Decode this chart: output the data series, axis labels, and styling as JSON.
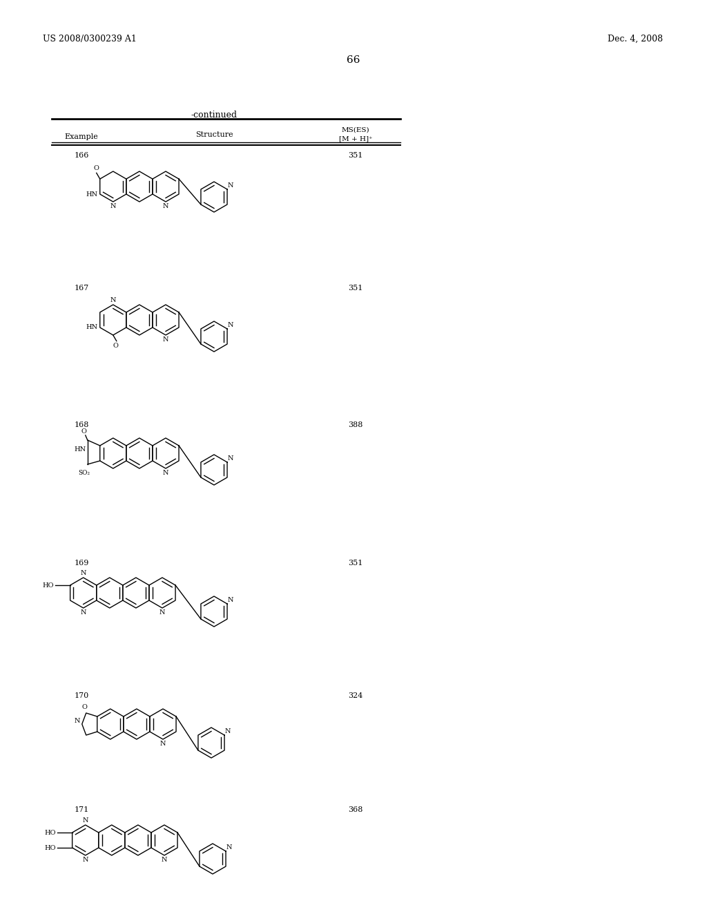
{
  "patent_number": "US 2008/0300239 A1",
  "patent_date": "Dec. 4, 2008",
  "page_number": "66",
  "table_continued": "-continued",
  "col_example": "Example",
  "col_structure": "Structure",
  "col_ms1": "MS(ES)",
  "col_ms2": "[M + H]⁺",
  "examples": [
    {
      "num": "166",
      "ms": "351"
    },
    {
      "num": "167",
      "ms": "351"
    },
    {
      "num": "168",
      "ms": "388"
    },
    {
      "num": "169",
      "ms": "351"
    },
    {
      "num": "170",
      "ms": "324"
    },
    {
      "num": "171",
      "ms": "368"
    }
  ],
  "bg_color": "#ffffff",
  "text_color": "#000000"
}
